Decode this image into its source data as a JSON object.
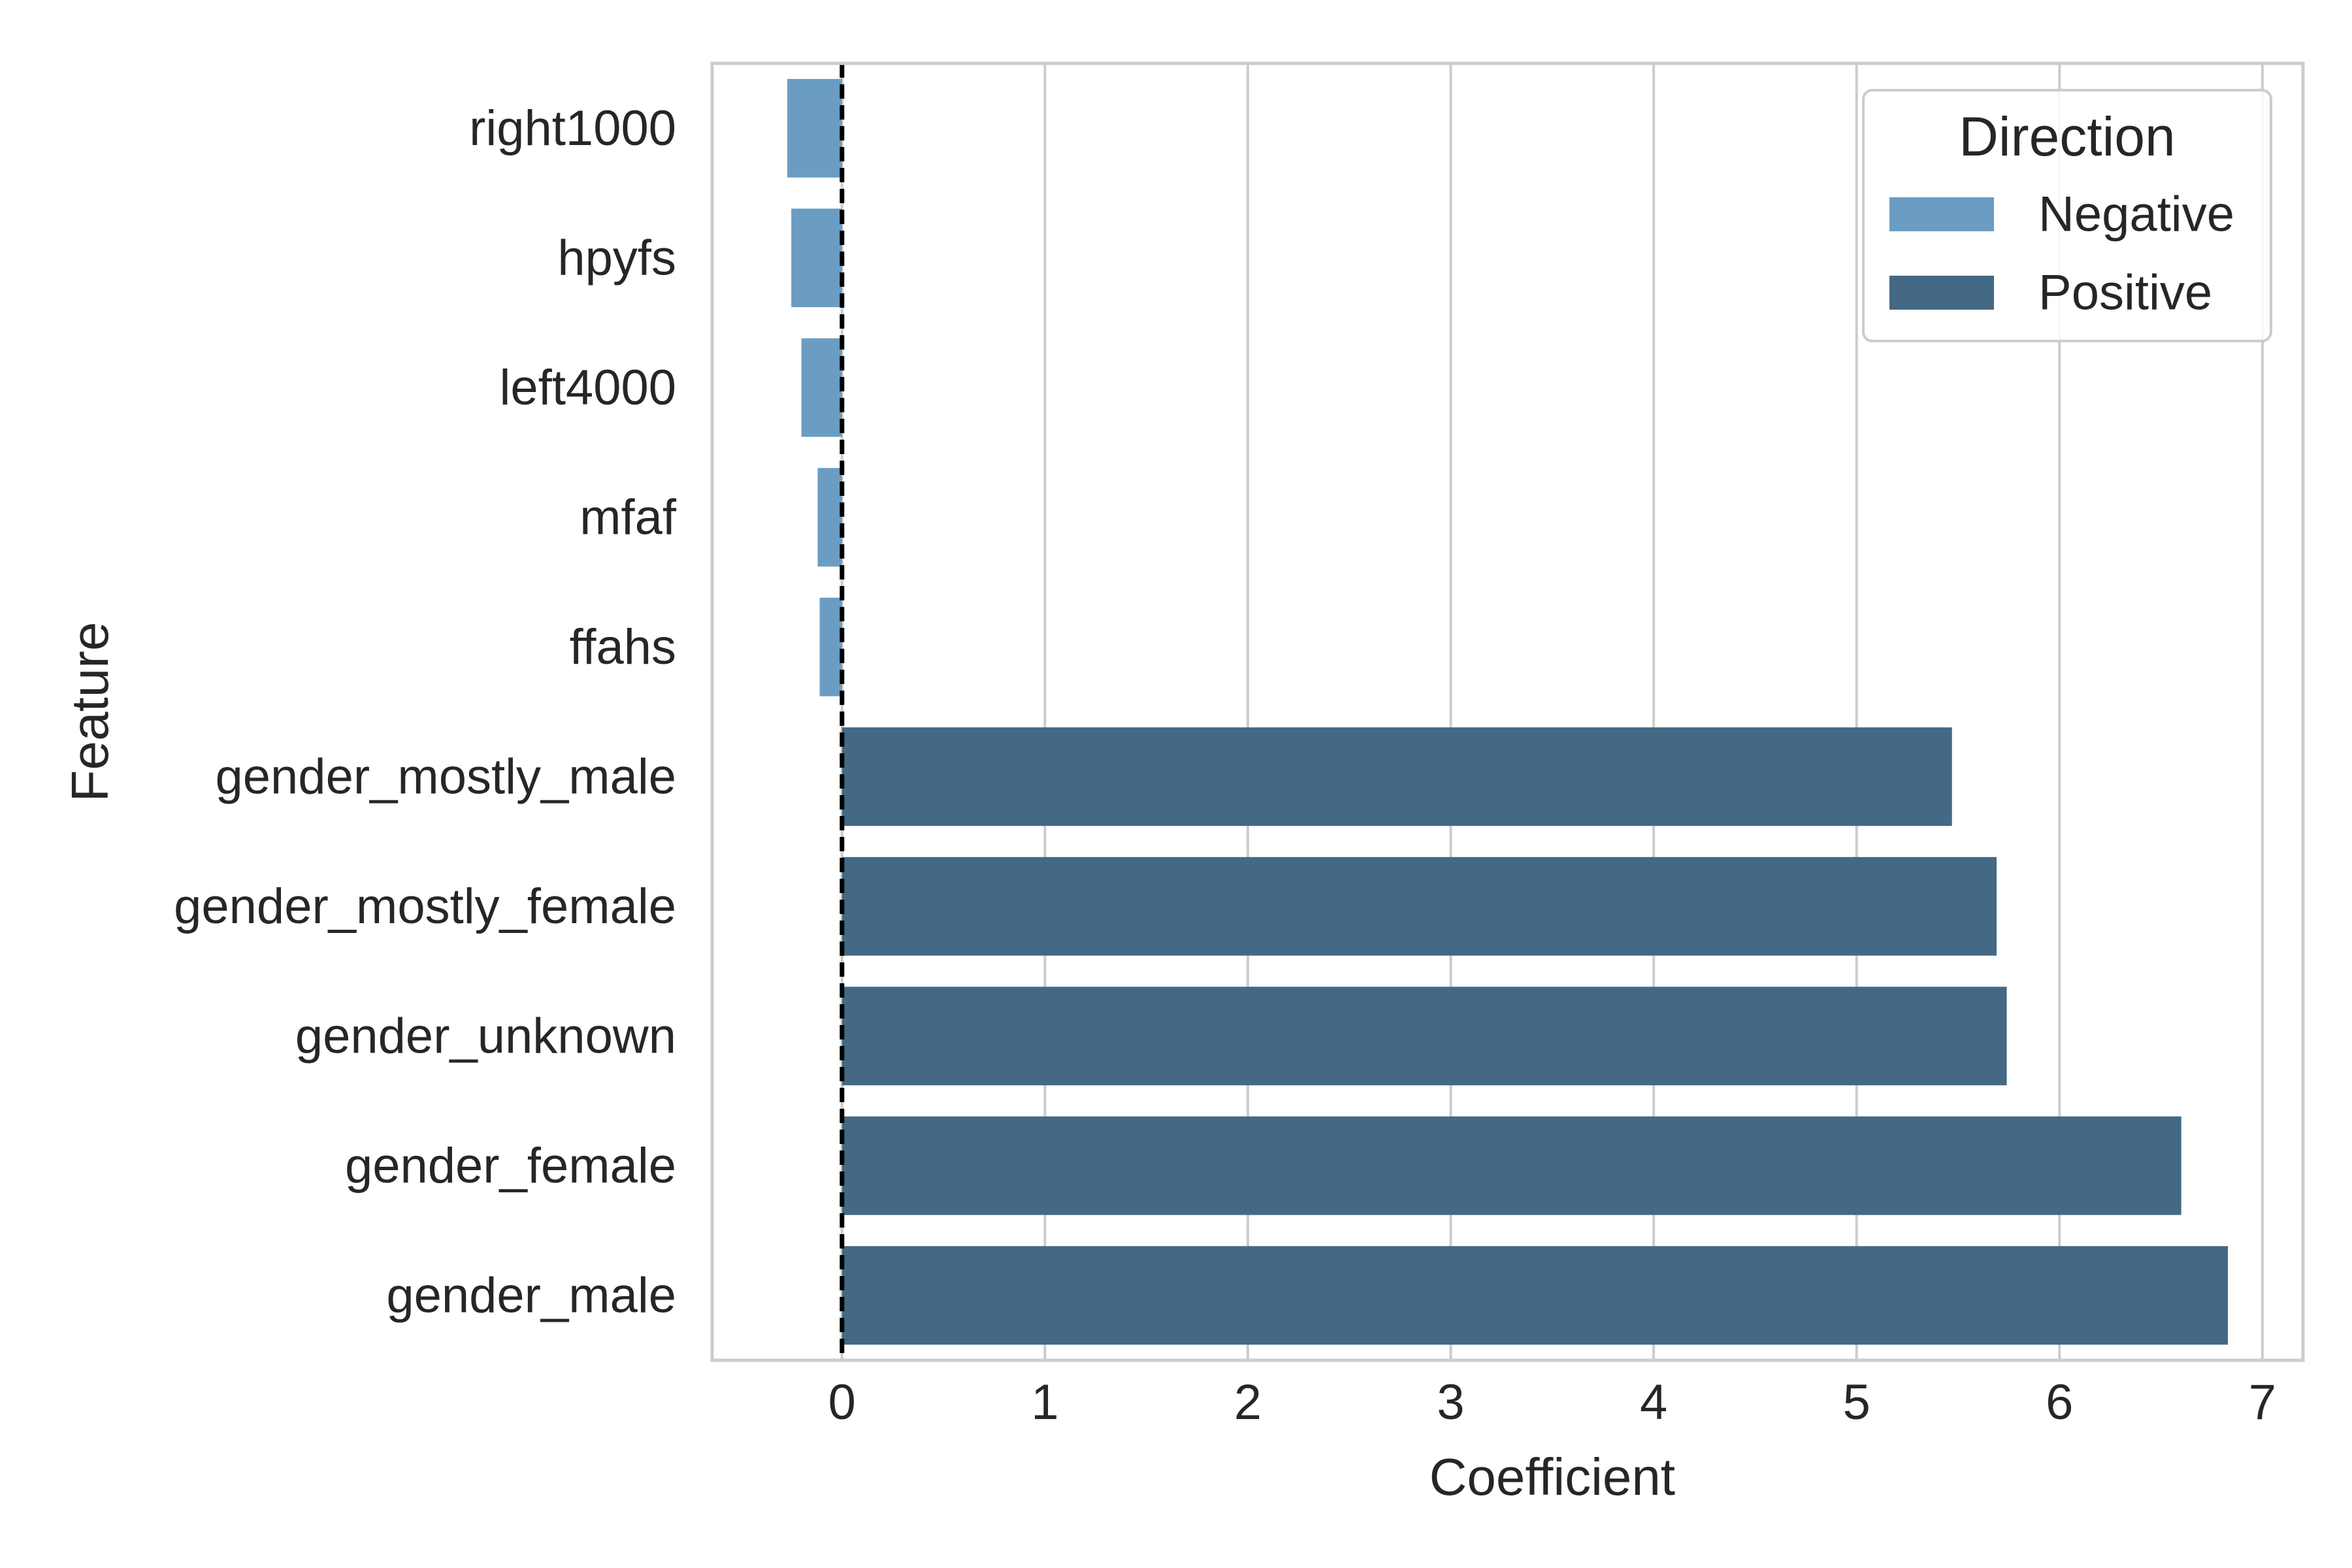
{
  "chart_data": {
    "type": "bar",
    "orientation": "horizontal",
    "xlabel": "Coefficient",
    "ylabel": "Feature",
    "xlim": [
      -0.64,
      7.2
    ],
    "xticks": [
      0,
      1,
      2,
      3,
      4,
      5,
      6,
      7
    ],
    "grid": "vertical",
    "reference_line": {
      "x": 0,
      "style": "dashed",
      "color": "#000000"
    },
    "categories": [
      "right1000",
      "hpyfs",
      "left4000",
      "mfaf",
      "ffahs",
      "gender_mostly_male",
      "gender_mostly_female",
      "gender_unknown",
      "gender_female",
      "gender_male"
    ],
    "values": [
      -0.27,
      -0.25,
      -0.2,
      -0.12,
      -0.11,
      5.47,
      5.69,
      5.74,
      6.6,
      6.83
    ],
    "directions": [
      "Negative",
      "Negative",
      "Negative",
      "Negative",
      "Negative",
      "Positive",
      "Positive",
      "Positive",
      "Positive",
      "Positive"
    ],
    "legend": {
      "title": "Direction",
      "placement": "top-right",
      "entries": [
        {
          "name": "Negative",
          "color": "#6b9dc2"
        },
        {
          "name": "Positive",
          "color": "#436985"
        }
      ]
    }
  }
}
